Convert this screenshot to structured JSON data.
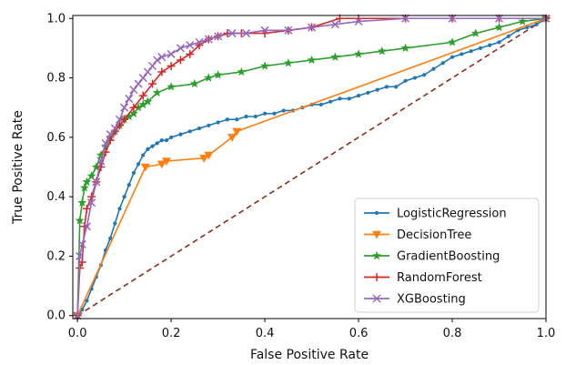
{
  "chart_data": {
    "type": "line",
    "title": "",
    "xlabel": "False Positive Rate",
    "ylabel": "True Positive Rate",
    "xlim": [
      -0.01,
      1.0
    ],
    "ylim": [
      -0.01,
      1.01
    ],
    "xticks": [
      "0.0",
      "0.2",
      "0.4",
      "0.6",
      "0.8",
      "1.0"
    ],
    "yticks": [
      "0.0",
      "0.2",
      "0.4",
      "0.6",
      "0.8",
      "1.0"
    ],
    "grid": false,
    "legend": "lower-right",
    "diagonal": {
      "x": [
        0,
        1
      ],
      "y": [
        0,
        1
      ],
      "color": "#8c2d19",
      "style": "dashed"
    },
    "series": [
      {
        "name": "LogisticRegression",
        "color": "#1f77b4",
        "marker": "dot",
        "x": [
          0.0,
          0.01,
          0.02,
          0.03,
          0.04,
          0.05,
          0.06,
          0.07,
          0.08,
          0.09,
          0.1,
          0.11,
          0.12,
          0.13,
          0.14,
          0.15,
          0.16,
          0.17,
          0.18,
          0.19,
          0.2,
          0.22,
          0.24,
          0.26,
          0.28,
          0.3,
          0.32,
          0.34,
          0.36,
          0.38,
          0.4,
          0.42,
          0.44,
          0.46,
          0.48,
          0.5,
          0.52,
          0.54,
          0.56,
          0.58,
          0.6,
          0.62,
          0.64,
          0.66,
          0.68,
          0.7,
          0.72,
          0.74,
          0.76,
          0.78,
          0.8,
          0.82,
          0.84,
          0.86,
          0.88,
          0.9,
          0.92,
          0.94,
          0.96,
          0.98,
          1.0
        ],
        "y": [
          0.0,
          0.02,
          0.05,
          0.09,
          0.13,
          0.17,
          0.22,
          0.26,
          0.31,
          0.36,
          0.4,
          0.44,
          0.48,
          0.51,
          0.54,
          0.56,
          0.57,
          0.58,
          0.59,
          0.59,
          0.6,
          0.61,
          0.62,
          0.63,
          0.64,
          0.65,
          0.66,
          0.66,
          0.67,
          0.67,
          0.68,
          0.68,
          0.69,
          0.69,
          0.7,
          0.71,
          0.71,
          0.72,
          0.73,
          0.73,
          0.74,
          0.75,
          0.76,
          0.77,
          0.77,
          0.79,
          0.8,
          0.81,
          0.83,
          0.85,
          0.87,
          0.88,
          0.89,
          0.9,
          0.91,
          0.92,
          0.94,
          0.96,
          0.97,
          0.98,
          1.0
        ]
      },
      {
        "name": "DecisionTree",
        "color": "#ff7f0e",
        "marker": "triangle-down",
        "x": [
          0.0,
          0.145,
          0.18,
          0.19,
          0.27,
          0.28,
          0.33,
          0.34,
          1.0
        ],
        "y": [
          0.0,
          0.5,
          0.51,
          0.52,
          0.53,
          0.54,
          0.6,
          0.62,
          1.0
        ]
      },
      {
        "name": "GradientBoosting",
        "color": "#2ca02c",
        "marker": "star",
        "x": [
          0.0,
          0.005,
          0.01,
          0.015,
          0.02,
          0.03,
          0.04,
          0.05,
          0.06,
          0.07,
          0.08,
          0.09,
          0.1,
          0.11,
          0.12,
          0.13,
          0.14,
          0.15,
          0.17,
          0.2,
          0.25,
          0.28,
          0.3,
          0.35,
          0.4,
          0.45,
          0.5,
          0.55,
          0.6,
          0.65,
          0.7,
          0.8,
          0.85,
          0.9,
          0.95,
          1.0
        ],
        "y": [
          0.0,
          0.32,
          0.38,
          0.43,
          0.45,
          0.47,
          0.5,
          0.54,
          0.57,
          0.6,
          0.62,
          0.64,
          0.66,
          0.67,
          0.68,
          0.7,
          0.71,
          0.72,
          0.75,
          0.77,
          0.78,
          0.8,
          0.81,
          0.82,
          0.84,
          0.85,
          0.86,
          0.87,
          0.88,
          0.89,
          0.9,
          0.92,
          0.95,
          0.97,
          0.99,
          1.0
        ]
      },
      {
        "name": "RandomForest",
        "color": "#d62728",
        "marker": "plus",
        "x": [
          0.0,
          0.005,
          0.01,
          0.015,
          0.02,
          0.03,
          0.04,
          0.05,
          0.06,
          0.07,
          0.08,
          0.09,
          0.1,
          0.12,
          0.14,
          0.16,
          0.18,
          0.2,
          0.22,
          0.24,
          0.26,
          0.28,
          0.3,
          0.32,
          0.35,
          0.4,
          0.45,
          0.5,
          0.56,
          0.6,
          0.7,
          0.8,
          0.9,
          1.0
        ],
        "y": [
          0.0,
          0.16,
          0.18,
          0.3,
          0.36,
          0.4,
          0.45,
          0.5,
          0.55,
          0.59,
          0.62,
          0.64,
          0.66,
          0.7,
          0.74,
          0.78,
          0.82,
          0.84,
          0.86,
          0.88,
          0.91,
          0.93,
          0.94,
          0.95,
          0.95,
          0.95,
          0.96,
          0.97,
          1.0,
          1.0,
          1.0,
          1.0,
          1.0,
          1.0
        ]
      },
      {
        "name": "XGBoosting",
        "color": "#9467bd",
        "marker": "x",
        "x": [
          0.0,
          0.005,
          0.01,
          0.02,
          0.03,
          0.04,
          0.05,
          0.06,
          0.07,
          0.08,
          0.09,
          0.1,
          0.11,
          0.12,
          0.13,
          0.14,
          0.15,
          0.16,
          0.17,
          0.18,
          0.2,
          0.22,
          0.24,
          0.26,
          0.28,
          0.3,
          0.33,
          0.36,
          0.4,
          0.45,
          0.5,
          0.55,
          0.6,
          0.7,
          0.8,
          0.9,
          1.0
        ],
        "y": [
          0.0,
          0.2,
          0.24,
          0.3,
          0.38,
          0.45,
          0.52,
          0.58,
          0.61,
          0.63,
          0.66,
          0.7,
          0.73,
          0.76,
          0.78,
          0.8,
          0.82,
          0.84,
          0.86,
          0.87,
          0.88,
          0.9,
          0.91,
          0.92,
          0.93,
          0.94,
          0.95,
          0.95,
          0.96,
          0.96,
          0.97,
          0.98,
          0.99,
          1.0,
          1.0,
          1.0,
          1.0
        ]
      }
    ]
  }
}
